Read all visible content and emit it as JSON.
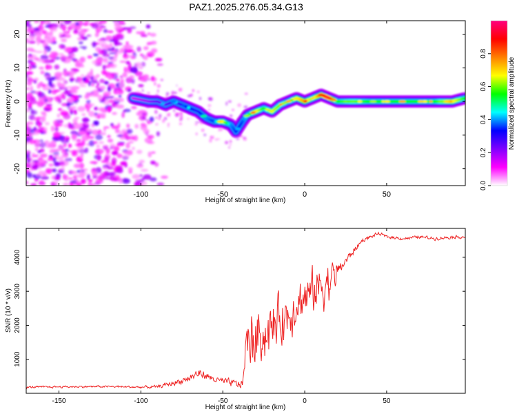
{
  "chart_data": [
    {
      "type": "heatmap",
      "title": "PAZ1.2025.276.05.34.G13",
      "xlabel": "Height of straight line (km)",
      "ylabel": "Frequency (Hz)",
      "xlim": [
        -170,
        98
      ],
      "ylim": [
        -25,
        24
      ],
      "xticks": [
        -150,
        -100,
        -50,
        0,
        50
      ],
      "yticks": [
        20,
        10,
        0,
        -10,
        -20
      ],
      "colorbar": {
        "label": "Normalized spectral amplitude",
        "range": [
          0,
          1
        ],
        "ticks": [
          0.0,
          0.2,
          0.4,
          0.6,
          0.8
        ],
        "colormap": [
          "#ffffff",
          "#ff00ff",
          "#8000ff",
          "#0000ff",
          "#00ffff",
          "#00ff00",
          "#ffff00",
          "#ff8000",
          "#ff0000",
          "#ff007f"
        ]
      },
      "ridge": {
        "x": [
          -105,
          -95,
          -90,
          -85,
          -80,
          -75,
          -70,
          -65,
          -60,
          -55,
          -50,
          -45,
          -42,
          -38,
          -35,
          -30,
          -25,
          -20,
          -15,
          -10,
          -5,
          0,
          5,
          10,
          15,
          20,
          30,
          40,
          50,
          60,
          70,
          80,
          90,
          98
        ],
        "y": [
          1,
          0,
          0,
          -1,
          0,
          -1,
          -2,
          -3,
          -5,
          -6,
          -6,
          -7,
          -9,
          -6,
          -4,
          -3,
          -2,
          -3,
          -1,
          0,
          1,
          0,
          1,
          2,
          1,
          0,
          0,
          0,
          0,
          0,
          0,
          0,
          0,
          1
        ],
        "amplitude": [
          0.15,
          0.2,
          0.25,
          0.25,
          0.3,
          0.3,
          0.35,
          0.3,
          0.4,
          0.35,
          0.7,
          0.4,
          0.35,
          0.35,
          0.45,
          0.7,
          0.55,
          0.65,
          0.6,
          0.55,
          0.65,
          0.75,
          0.6,
          0.8,
          0.95,
          0.55,
          0.6,
          0.55,
          0.55,
          0.55,
          0.55,
          0.55,
          0.7,
          0.55
        ]
      }
    },
    {
      "type": "line",
      "xlabel": "Height of straight line (km)",
      "ylabel": "SNR (10 * v/v)",
      "xlim": [
        -170,
        98
      ],
      "ylim": [
        0,
        4850
      ],
      "xticks": [
        -150,
        -100,
        -50,
        0,
        50
      ],
      "yticks": [
        1000,
        2000,
        3000,
        4000
      ],
      "color": "#ee2222",
      "series": [
        {
          "name": "SNR",
          "x": [
            -170,
            -150,
            -120,
            -100,
            -90,
            -85,
            -80,
            -75,
            -70,
            -65,
            -60,
            -55,
            -50,
            -45,
            -42,
            -38,
            -36,
            -34,
            -32,
            -30,
            -28,
            -25,
            -20,
            -15,
            -10,
            -5,
            0,
            5,
            8,
            10,
            15,
            20,
            25,
            30,
            35,
            40,
            45,
            50,
            60,
            70,
            80,
            90,
            98
          ],
          "y": [
            180,
            190,
            200,
            180,
            190,
            250,
            300,
            380,
            450,
            600,
            500,
            400,
            350,
            300,
            280,
            250,
            1600,
            1400,
            1700,
            1500,
            1800,
            1700,
            1900,
            2200,
            2300,
            2700,
            2800,
            3000,
            3100,
            3200,
            3300,
            3600,
            3900,
            4200,
            4500,
            4600,
            4700,
            4600,
            4550,
            4600,
            4550,
            4600,
            4600
          ],
          "spread": [
            80,
            80,
            80,
            90,
            120,
            150,
            200,
            250,
            300,
            350,
            300,
            250,
            250,
            300,
            300,
            350,
            1200,
            1300,
            1400,
            1400,
            1200,
            1200,
            1200,
            1100,
            1100,
            1100,
            1000,
            1000,
            1100,
            1200,
            900,
            600,
            400,
            250,
            150,
            120,
            120,
            120,
            120,
            120,
            120,
            120,
            120
          ]
        }
      ]
    }
  ]
}
